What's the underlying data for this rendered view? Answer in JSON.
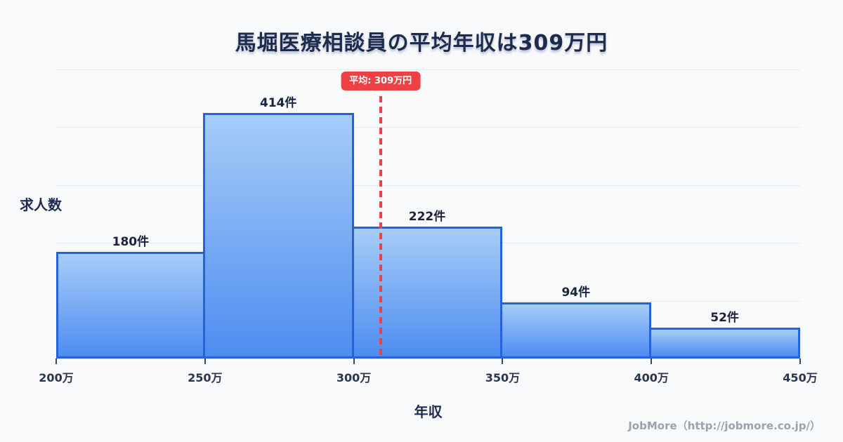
{
  "page": {
    "background": "#f8f9fb"
  },
  "header": {
    "title": "馬堀医療相談員の平均年収は309万円"
  },
  "chart_data": {
    "type": "bar",
    "subtype": "histogram",
    "title": "馬堀医療相談員の平均年収は309万円",
    "xlabel": "年収",
    "ylabel": "求人数",
    "unit": "件",
    "x_tick_labels": [
      "200万",
      "250万",
      "300万",
      "350万",
      "400万",
      "450万"
    ],
    "bin_edges": [
      200,
      250,
      300,
      350,
      400,
      450
    ],
    "values": [
      180,
      414,
      222,
      94,
      52
    ],
    "bar_labels": [
      "180件",
      "414件",
      "222件",
      "94件",
      "52件"
    ],
    "ylim": [
      0,
      487
    ],
    "x_range": [
      200,
      450
    ],
    "grid": true,
    "gridline_count": 6,
    "legend": false,
    "average": {
      "value": 309,
      "label": "平均: 309万円"
    },
    "colors": {
      "background": "#f8f9fb",
      "bar_fill_top": "#a6cdf8",
      "bar_fill_bottom": "#4e8cf0",
      "bar_border": "#2563dd",
      "grid_line": "#e4e9f2",
      "average_line": "#ee4146",
      "average_badge_bg": "#ee4146",
      "average_badge_text": "#ffffff",
      "title_text": "#1d2b4f",
      "bar_label_text": "#18233f",
      "tick_text": "#2a3550",
      "axis_tick_mark": "#3a465f",
      "footer_text": "#9aa3ad"
    }
  },
  "footer": {
    "credit": "JobMore（http://jobmore.co.jp/）"
  }
}
